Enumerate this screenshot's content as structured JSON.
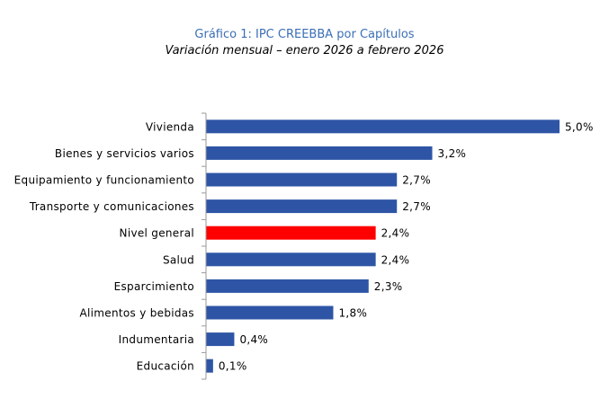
{
  "chart_data": {
    "type": "bar",
    "orientation": "horizontal",
    "title": "Gráfico 1: IPC CREEBBA por Capítulos",
    "subtitle": "Variación mensual – enero 2026 a febrero 2026",
    "categories": [
      "Vivienda",
      "Bienes y servicios varios",
      "Equipamiento y funcionamiento",
      "Transporte y comunicaciones",
      "Nivel general",
      "Salud",
      "Esparcimiento",
      "Alimentos y bebidas",
      "Indumentaria",
      "Educación"
    ],
    "values": [
      5.0,
      3.2,
      2.7,
      2.7,
      2.4,
      2.4,
      2.3,
      1.8,
      0.4,
      0.1
    ],
    "value_labels": [
      "5,0%",
      "3,2%",
      "2,7%",
      "2,7%",
      "2,4%",
      "2,4%",
      "2,3%",
      "1,8%",
      "0,4%",
      "0,1%"
    ],
    "colors": [
      "#2e55a5",
      "#2e55a5",
      "#2e55a5",
      "#2e55a5",
      "#ff0000",
      "#2e55a5",
      "#2e55a5",
      "#2e55a5",
      "#2e55a5",
      "#2e55a5"
    ],
    "xlim": [
      0,
      5.0
    ],
    "grid": false,
    "legend": "none"
  }
}
